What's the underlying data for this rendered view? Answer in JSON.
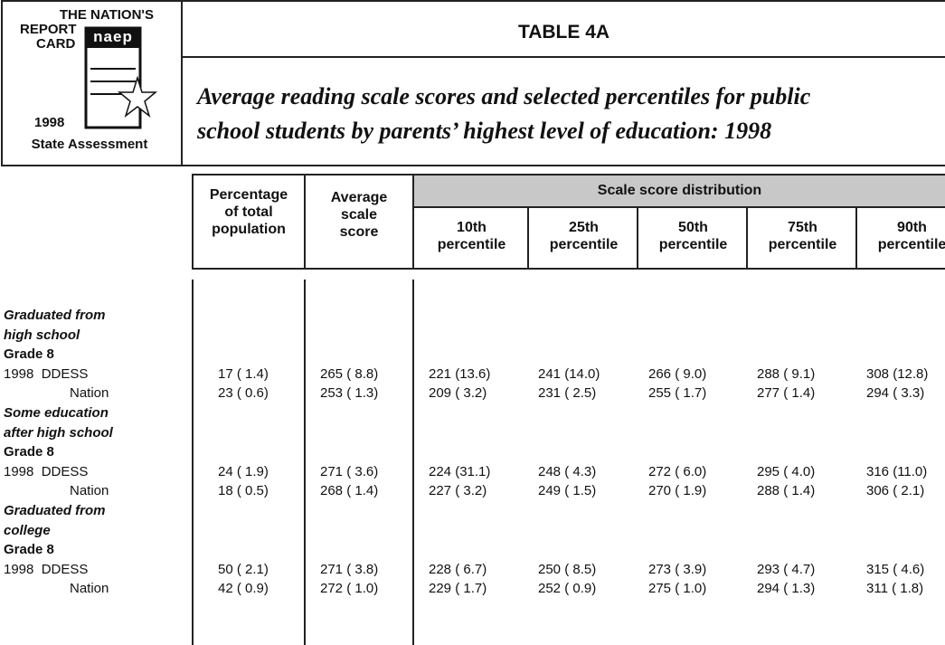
{
  "header": {
    "logo": {
      "top": "THE NATION'S",
      "report": "REPORT",
      "card": "CARD",
      "mark": "naep",
      "year": "1998",
      "program": "State Assessment"
    },
    "table_label": "TABLE 4A",
    "title": [
      "Average reading scale scores and selected percentiles for public",
      "school students by parents’ highest level of education: 1998"
    ]
  },
  "table": {
    "columns": [
      [
        "Percentage",
        "of total",
        "population"
      ],
      [
        "Average",
        "scale",
        "score"
      ]
    ],
    "group_header": "Scale score distribution",
    "percentiles": [
      [
        "10th",
        "percentile"
      ],
      [
        "25th",
        "percentile"
      ],
      [
        "50th",
        "percentile"
      ],
      [
        "75th",
        "percentile"
      ],
      [
        "90th",
        "percentile"
      ]
    ],
    "groups": [
      {
        "label": [
          "Graduated from",
          "high school"
        ],
        "grade": "Grade 8",
        "rows": [
          {
            "label": "1998  DDESS",
            "cells": [
              "17 ( 1.4)",
              "265 ( 8.8)",
              "221 (13.6)",
              "241 (14.0)",
              "266 ( 9.0)",
              "288 ( 9.1)",
              "308 (12.8)"
            ]
          },
          {
            "label": "Nation",
            "cells": [
              "23 ( 0.6)",
              "253 ( 1.3)",
              "209 ( 3.2)",
              "231 ( 2.5)",
              "255 ( 1.7)",
              "277 ( 1.4)",
              "294 ( 3.3)"
            ]
          }
        ]
      },
      {
        "label": [
          "Some education",
          "after high school"
        ],
        "grade": "Grade 8",
        "rows": [
          {
            "label": "1998  DDESS",
            "cells": [
              "24 ( 1.9)",
              "271 ( 3.6)",
              "224 (31.1)",
              "248 ( 4.3)",
              "272 ( 6.0)",
              "295 ( 4.0)",
              "316 (11.0)"
            ]
          },
          {
            "label": "Nation",
            "cells": [
              "18 ( 0.5)",
              "268 ( 1.4)",
              "227 ( 3.2)",
              "249 ( 1.5)",
              "270 ( 1.9)",
              "288 ( 1.4)",
              "306 ( 2.1)"
            ]
          }
        ]
      },
      {
        "label": [
          "Graduated from",
          "college"
        ],
        "grade": "Grade 8",
        "rows": [
          {
            "label": "1998  DDESS",
            "cells": [
              "50 ( 2.1)",
              "271 ( 3.8)",
              "228 ( 6.7)",
              "250 ( 8.5)",
              "273 ( 3.9)",
              "293 ( 4.7)",
              "315 ( 4.6)"
            ]
          },
          {
            "label": "Nation",
            "cells": [
              "42 ( 0.9)",
              "272 ( 1.0)",
              "229 ( 1.7)",
              "252 ( 0.9)",
              "275 ( 1.0)",
              "294 ( 1.3)",
              "311 ( 1.8)"
            ]
          }
        ]
      }
    ]
  }
}
